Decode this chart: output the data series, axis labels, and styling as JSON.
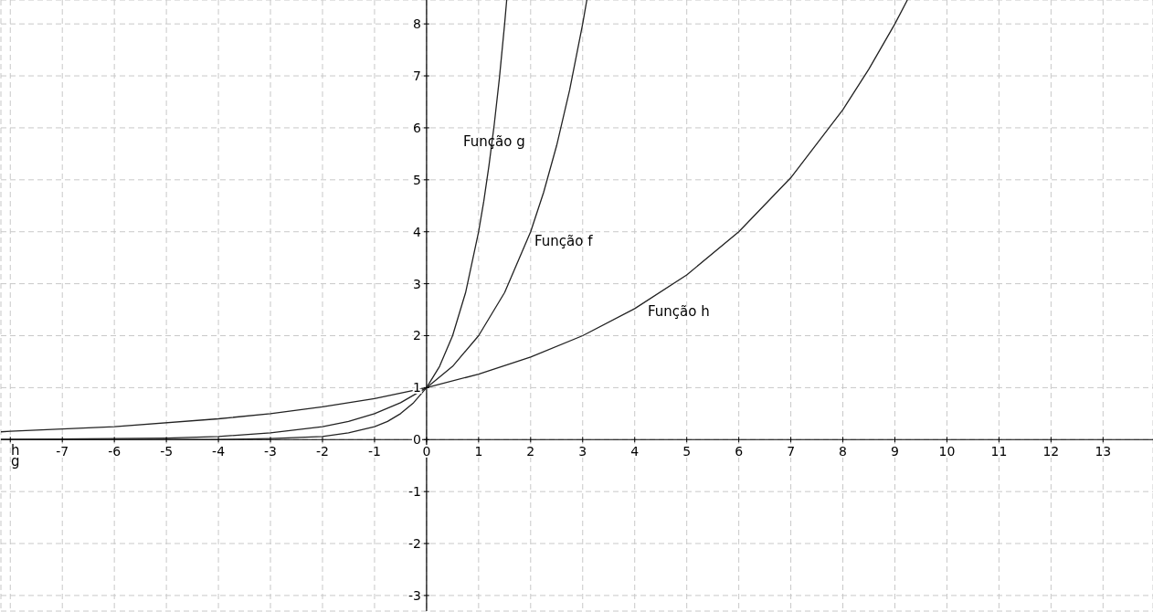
{
  "chart_data": {
    "type": "line",
    "xlim": [
      -8.18,
      13.96
    ],
    "ylim": [
      -3.3,
      8.46
    ],
    "xticks": [
      {
        "value": -8,
        "label": null
      },
      -7,
      -6,
      -5,
      -4,
      -3,
      -2,
      -1,
      0,
      1,
      2,
      3,
      4,
      5,
      6,
      7,
      8,
      9,
      10,
      11,
      12,
      13
    ],
    "yticks": [
      -3,
      -2,
      -1,
      0,
      1,
      2,
      3,
      4,
      5,
      6,
      7,
      8
    ],
    "grid": true,
    "marker": "none",
    "line_style": "solid",
    "series": [
      {
        "color": "#222222",
        "x": [
          -8.18,
          -6,
          -4,
          -3,
          -2,
          -1.5,
          -1,
          -0.75,
          -0.5,
          -0.25,
          0,
          0.25,
          0.5,
          0.75,
          1,
          1.1,
          1.2,
          1.3,
          1.4,
          1.5,
          1.54
        ],
        "values": [
          0,
          0,
          0,
          0.02,
          0.06,
          0.13,
          0.25,
          0.35,
          0.5,
          0.71,
          1,
          1.41,
          2,
          2.83,
          4,
          4.59,
          5.28,
          6.06,
          6.96,
          8,
          8.46
        ]
      },
      {
        "color": "#222222",
        "x": [
          -8.18,
          -6,
          -5,
          -4,
          -3,
          -2,
          -1.5,
          -1,
          -0.5,
          0,
          0.5,
          1,
          1.5,
          2,
          2.25,
          2.5,
          2.75,
          3,
          3.08
        ],
        "values": [
          0,
          0.02,
          0.03,
          0.06,
          0.13,
          0.25,
          0.35,
          0.5,
          0.71,
          1,
          1.41,
          2,
          2.83,
          4,
          4.76,
          5.66,
          6.73,
          8,
          8.46
        ]
      },
      {
        "color": "#222222",
        "x": [
          -8.18,
          -8,
          -6,
          -4,
          -3,
          -2,
          -1,
          0,
          1,
          2,
          3,
          4,
          5,
          6,
          7,
          8,
          8.5,
          9,
          9.24
        ],
        "values": [
          0.15,
          0.16,
          0.25,
          0.4,
          0.5,
          0.63,
          0.79,
          1,
          1.26,
          1.59,
          2,
          2.52,
          3.17,
          4,
          5.04,
          6.35,
          7.13,
          8,
          8.46
        ]
      }
    ],
    "annotations": [
      "Função g",
      "Função f",
      "Função h",
      "h",
      "g"
    ]
  }
}
